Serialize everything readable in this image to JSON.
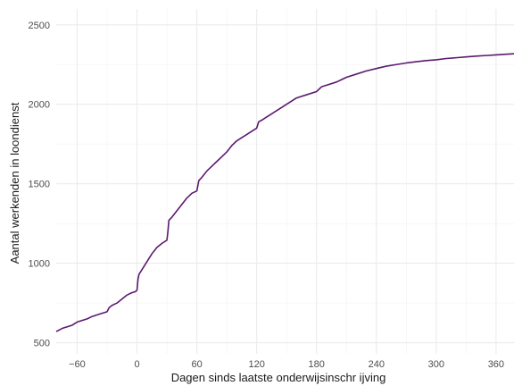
{
  "chart_data": {
    "type": "line",
    "xlabel": "Dagen sinds laatste onderwijsinschr ijving",
    "ylabel": "Aantal werkenden in loondienst",
    "xlim": [
      -81,
      378
    ],
    "ylim": [
      430,
      2600
    ],
    "x_ticks": [
      -60,
      0,
      60,
      120,
      180,
      240,
      300,
      360
    ],
    "y_ticks": [
      500,
      1000,
      1500,
      2000,
      2500
    ],
    "grid": true,
    "legend": "none",
    "line_color": "#5b1a6e",
    "series": [
      {
        "x": [
          -81,
          -75,
          -70,
          -65,
          -60,
          -55,
          -50,
          -45,
          -40,
          -35,
          -30,
          -28,
          -25,
          -20,
          -15,
          -10,
          -5,
          -2,
          0,
          1,
          2,
          5,
          10,
          15,
          20,
          25,
          30,
          31,
          32,
          35,
          40,
          45,
          50,
          55,
          60,
          62,
          65,
          70,
          75,
          80,
          85,
          90,
          95,
          100,
          105,
          110,
          115,
          120,
          122,
          125,
          130,
          135,
          140,
          145,
          150,
          160,
          170,
          180,
          185,
          190,
          200,
          210,
          220,
          230,
          240,
          250,
          260,
          270,
          280,
          290,
          300,
          310,
          320,
          330,
          340,
          350,
          360,
          370,
          378
        ],
        "y": [
          570,
          590,
          600,
          610,
          630,
          640,
          650,
          665,
          675,
          685,
          695,
          720,
          735,
          750,
          775,
          800,
          815,
          820,
          830,
          900,
          930,
          960,
          1010,
          1060,
          1100,
          1125,
          1145,
          1200,
          1270,
          1290,
          1330,
          1370,
          1410,
          1440,
          1455,
          1520,
          1540,
          1580,
          1610,
          1640,
          1670,
          1700,
          1740,
          1770,
          1790,
          1810,
          1830,
          1850,
          1890,
          1900,
          1920,
          1940,
          1960,
          1980,
          2000,
          2040,
          2060,
          2080,
          2110,
          2120,
          2140,
          2170,
          2190,
          2210,
          2225,
          2240,
          2250,
          2260,
          2268,
          2275,
          2280,
          2288,
          2293,
          2298,
          2303,
          2307,
          2311,
          2315,
          2318
        ]
      }
    ]
  }
}
